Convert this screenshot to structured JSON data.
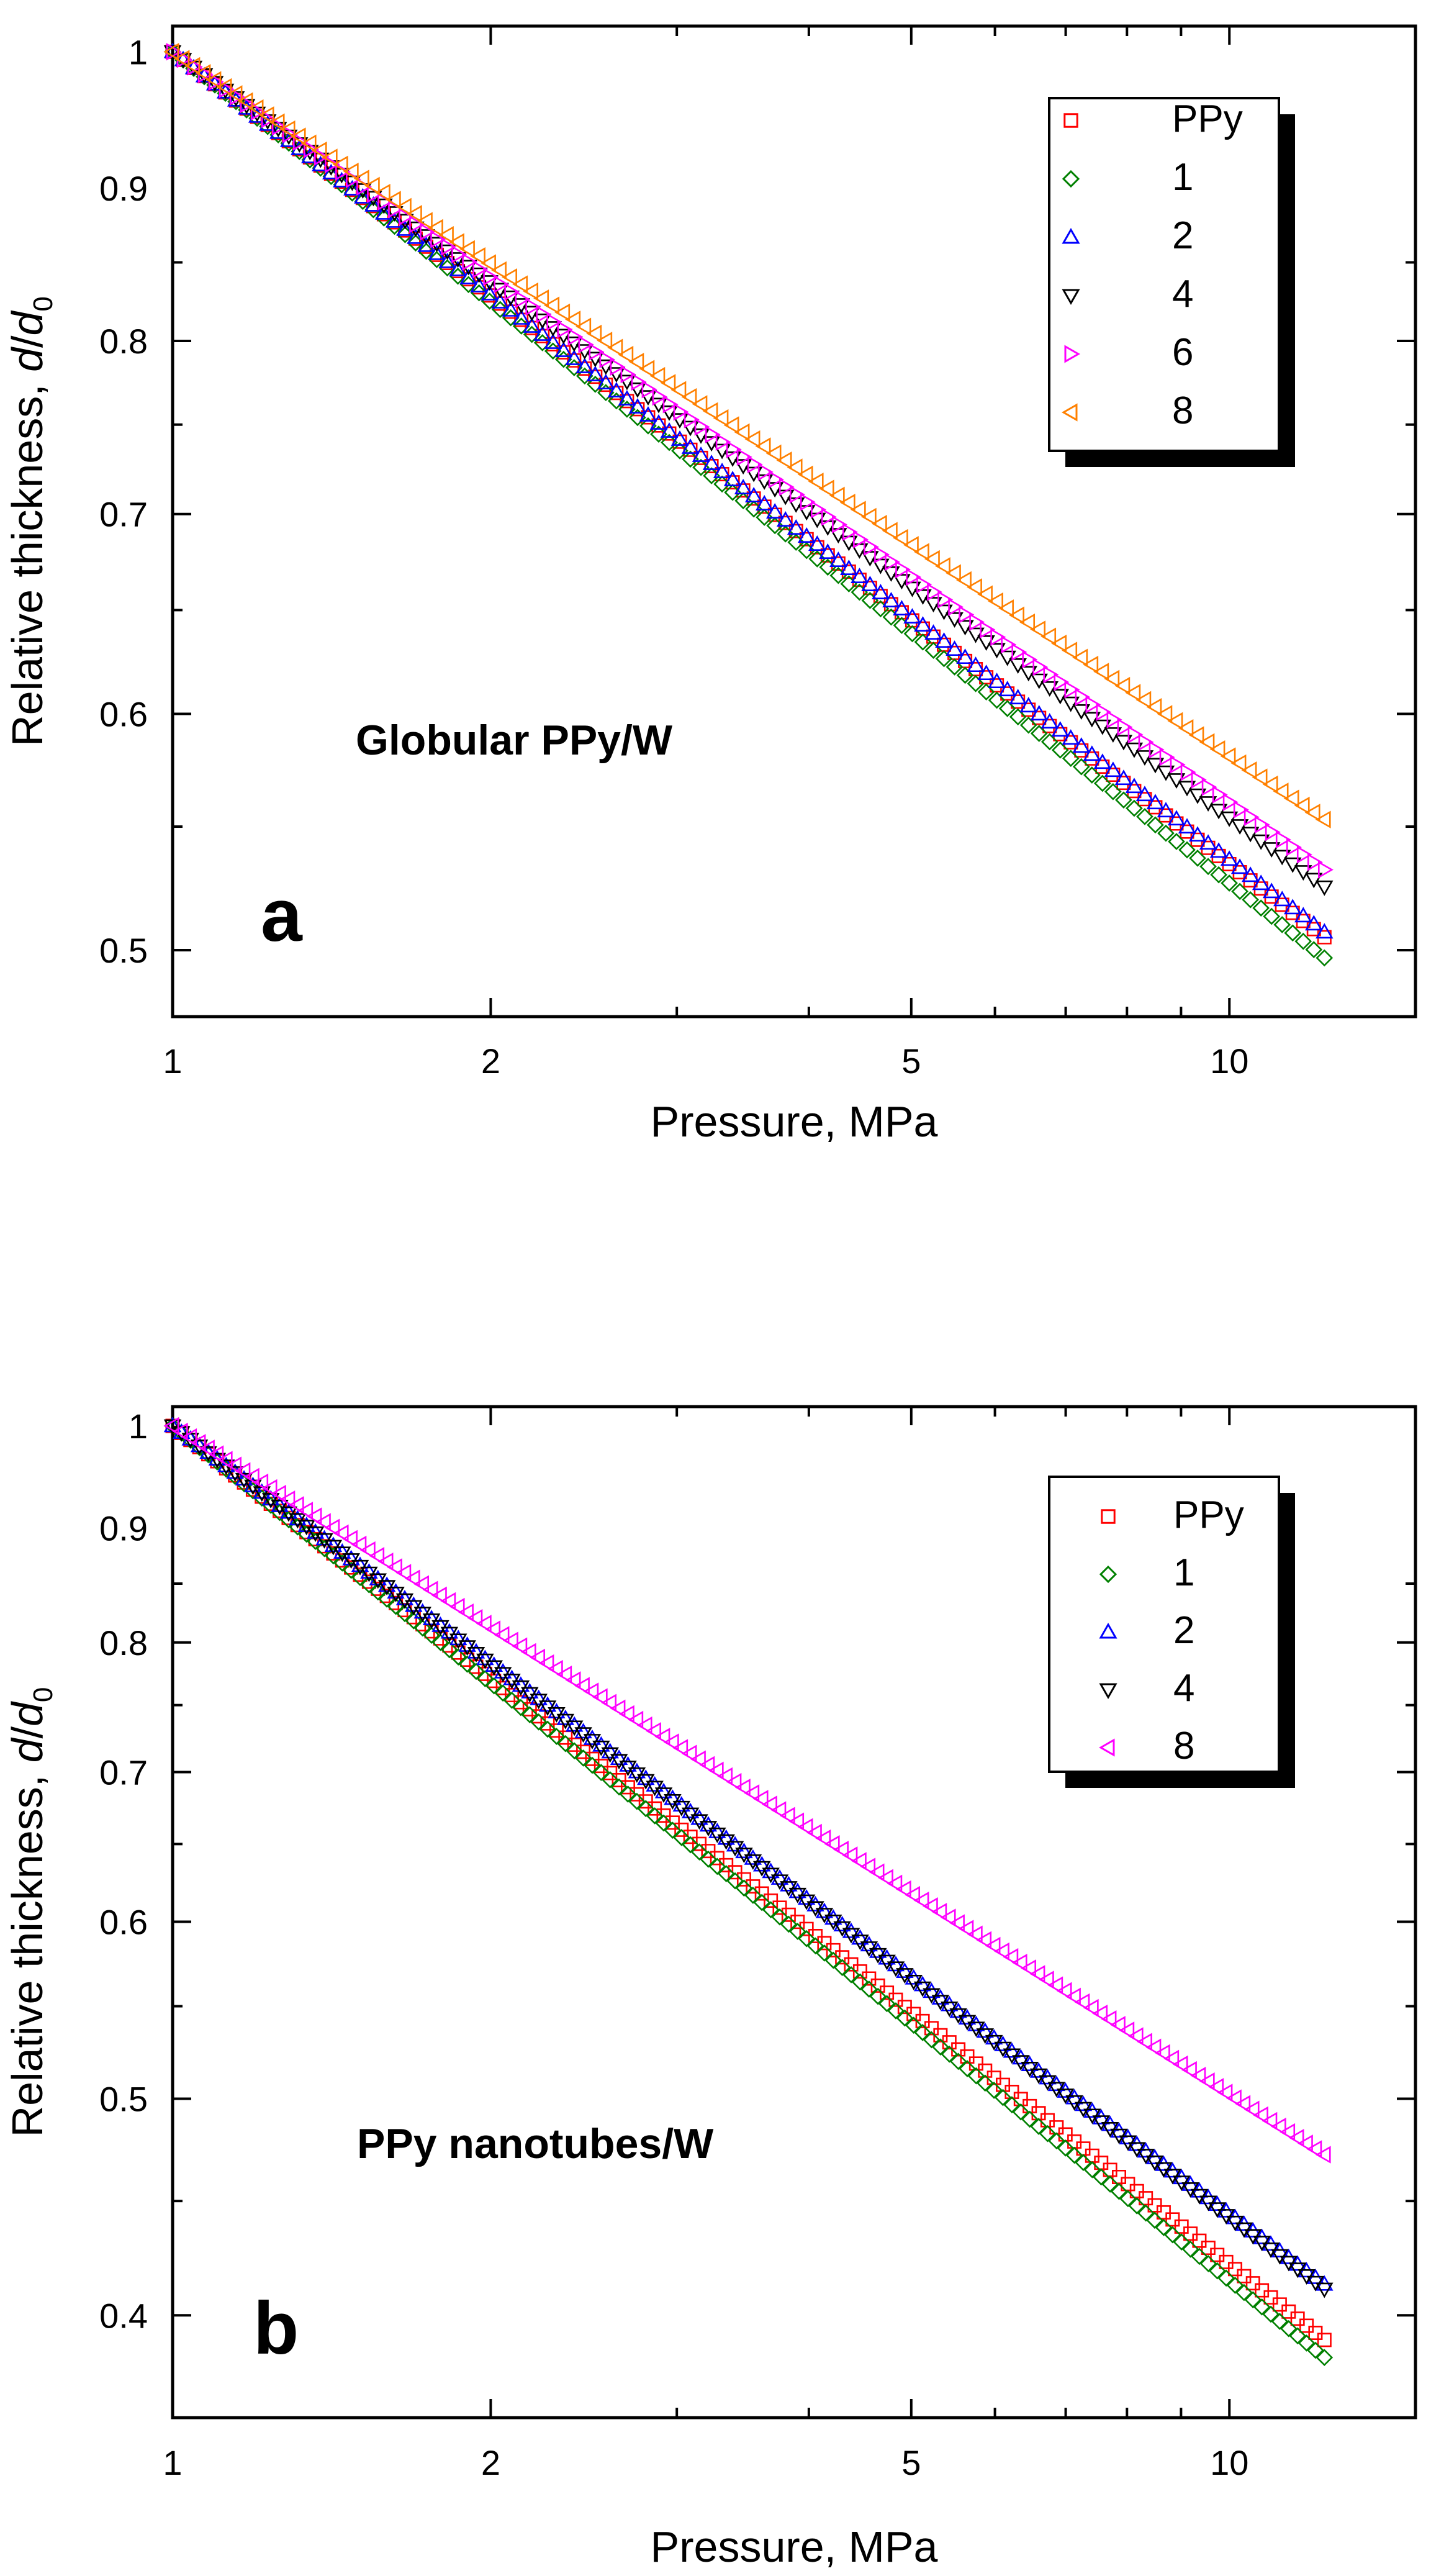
{
  "chart_data": [
    {
      "type": "scatter",
      "panel": "a",
      "title": "",
      "annotation": "Globular PPy/W",
      "panel_label": "a",
      "xlabel": "Pressure, MPa",
      "ylabel_main": "Relative thickness, ",
      "ylabel_italic_d": "d",
      "ylabel_slash": "/",
      "ylabel_italic_d0": "d",
      "ylabel_sub": "0",
      "xscale": "log",
      "yscale": "log",
      "xlim": [
        1,
        15
      ],
      "ylim": [
        0.475,
        1.02
      ],
      "xticks": [
        {
          "v": 1,
          "label": "1"
        },
        {
          "v": 2,
          "label": "2"
        },
        {
          "v": 5,
          "label": "5"
        },
        {
          "v": 10,
          "label": "10"
        }
      ],
      "yticks": [
        {
          "v": 0.5,
          "label": "0.5"
        },
        {
          "v": 0.6,
          "label": "0.6"
        },
        {
          "v": 0.7,
          "label": "0.7"
        },
        {
          "v": 0.8,
          "label": "0.8"
        },
        {
          "v": 0.9,
          "label": "0.9"
        },
        {
          "v": 1,
          "label": "1"
        }
      ],
      "x_range": [
        1,
        12.3
      ],
      "points_per_series": 110,
      "legend_position": "top-right",
      "series": [
        {
          "name": "PPy",
          "marker": "square",
          "color": "#ff0000",
          "y_end": 0.505
        },
        {
          "name": "1",
          "marker": "diamond",
          "color": "#008000",
          "y_end": 0.497
        },
        {
          "name": "2",
          "marker": "triangle-up",
          "color": "#0000ff",
          "y_end": 0.507
        },
        {
          "name": "4",
          "marker": "triangle-down",
          "color": "#000000",
          "y_end": 0.525
        },
        {
          "name": "6",
          "marker": "triangle-right",
          "color": "#ff00ff",
          "y_end": 0.532
        },
        {
          "name": "8",
          "marker": "triangle-left",
          "color": "#ff8000",
          "y_end": 0.553
        }
      ]
    },
    {
      "type": "scatter",
      "panel": "b",
      "title": "",
      "annotation": "PPy nanotubes/W",
      "panel_label": "b",
      "xlabel": "Pressure, MPa",
      "ylabel_main": "Relative thickness, ",
      "ylabel_italic_d": "d",
      "ylabel_slash": "/",
      "ylabel_italic_d0": "d",
      "ylabel_sub": "0",
      "xscale": "log",
      "yscale": "log",
      "xlim": [
        1,
        15
      ],
      "ylim": [
        0.36,
        1.02
      ],
      "xticks": [
        {
          "v": 1,
          "label": "1"
        },
        {
          "v": 2,
          "label": "2"
        },
        {
          "v": 5,
          "label": "5"
        },
        {
          "v": 10,
          "label": "10"
        }
      ],
      "yticks": [
        {
          "v": 0.4,
          "label": "0.4"
        },
        {
          "v": 0.5,
          "label": "0.5"
        },
        {
          "v": 0.6,
          "label": "0.6"
        },
        {
          "v": 0.7,
          "label": "0.7"
        },
        {
          "v": 0.8,
          "label": "0.8"
        },
        {
          "v": 0.9,
          "label": "0.9"
        },
        {
          "v": 1,
          "label": "1"
        }
      ],
      "x_range": [
        1,
        12.3
      ],
      "points_per_series": 130,
      "legend_position": "top-right",
      "series": [
        {
          "name": "PPy",
          "marker": "square",
          "color": "#ff0000",
          "y_end": 0.39
        },
        {
          "name": "1",
          "marker": "diamond",
          "color": "#008000",
          "y_end": 0.383
        },
        {
          "name": "2",
          "marker": "triangle-up",
          "color": "#0000ff",
          "y_end": 0.413
        },
        {
          "name": "4",
          "marker": "triangle-down",
          "color": "#000000",
          "y_end": 0.411
        },
        {
          "name": "8",
          "marker": "triangle-left",
          "color": "#ff00ff",
          "y_end": 0.472
        }
      ]
    }
  ]
}
